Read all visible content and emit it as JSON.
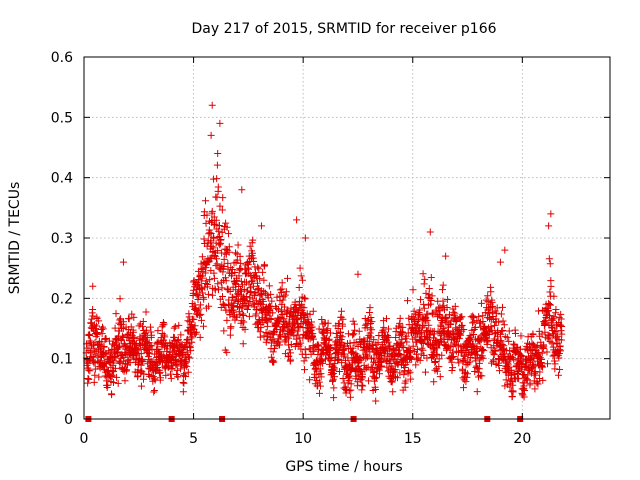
{
  "chart_data": {
    "type": "scatter",
    "title": "Day 217 of 2015, SRMTID for receiver p166",
    "xlabel": "GPS time / hours",
    "ylabel": "SRMTID / TECUs",
    "xlim": [
      0,
      24
    ],
    "ylim": [
      0,
      0.6
    ],
    "xticks": [
      0,
      5,
      10,
      15,
      20
    ],
    "xtick_labels": [
      "0",
      "5",
      "10",
      "15",
      "20"
    ],
    "yticks": [
      0,
      0.1,
      0.2,
      0.3,
      0.4,
      0.5,
      0.6
    ],
    "ytick_labels": [
      "0",
      "0.1",
      "0.2",
      "0.3",
      "0.4",
      "0.5",
      "0.6"
    ],
    "grid": true,
    "marker": "+",
    "color": "#e00000",
    "data_gap_markers_x": [
      0.2,
      4.0,
      6.3,
      12.3,
      18.4,
      19.9
    ],
    "series": [
      {
        "name": "SRMTID",
        "profile_x": [
          0.1,
          0.3,
          0.5,
          0.8,
          1.2,
          1.6,
          1.8,
          2.2,
          2.6,
          3.0,
          3.4,
          3.8,
          4.2,
          4.6,
          4.9,
          5.1,
          5.3,
          5.5,
          5.7,
          5.9,
          6.1,
          6.3,
          6.5,
          6.8,
          7.2,
          7.6,
          8.0,
          8.4,
          8.8,
          9.2,
          9.6,
          9.9,
          10.2,
          10.6,
          11.0,
          11.4,
          11.8,
          12.2,
          12.6,
          13.0,
          13.4,
          13.8,
          14.2,
          14.6,
          15.0,
          15.4,
          15.8,
          16.2,
          16.6,
          17.0,
          17.4,
          17.8,
          18.2,
          18.6,
          19.0,
          19.4,
          19.8,
          20.2,
          20.6,
          21.0,
          21.3,
          21.6,
          21.8
        ],
        "profile_center": [
          0.07,
          0.12,
          0.15,
          0.1,
          0.09,
          0.12,
          0.13,
          0.11,
          0.12,
          0.1,
          0.09,
          0.11,
          0.1,
          0.11,
          0.14,
          0.2,
          0.22,
          0.24,
          0.26,
          0.3,
          0.32,
          0.26,
          0.24,
          0.2,
          0.22,
          0.23,
          0.2,
          0.16,
          0.15,
          0.17,
          0.14,
          0.2,
          0.13,
          0.1,
          0.12,
          0.1,
          0.12,
          0.09,
          0.11,
          0.12,
          0.1,
          0.11,
          0.09,
          0.12,
          0.12,
          0.16,
          0.15,
          0.14,
          0.15,
          0.13,
          0.12,
          0.11,
          0.14,
          0.16,
          0.12,
          0.1,
          0.08,
          0.09,
          0.1,
          0.13,
          0.18,
          0.13,
          0.12
        ],
        "profile_spread": [
          0.03,
          0.05,
          0.06,
          0.04,
          0.04,
          0.05,
          0.06,
          0.04,
          0.05,
          0.04,
          0.04,
          0.04,
          0.04,
          0.04,
          0.05,
          0.06,
          0.07,
          0.08,
          0.09,
          0.11,
          0.12,
          0.1,
          0.09,
          0.07,
          0.07,
          0.07,
          0.07,
          0.06,
          0.05,
          0.06,
          0.05,
          0.08,
          0.05,
          0.04,
          0.05,
          0.04,
          0.05,
          0.04,
          0.05,
          0.06,
          0.04,
          0.05,
          0.04,
          0.05,
          0.06,
          0.07,
          0.07,
          0.06,
          0.06,
          0.05,
          0.05,
          0.05,
          0.06,
          0.07,
          0.05,
          0.05,
          0.04,
          0.04,
          0.05,
          0.06,
          0.09,
          0.05,
          0.04
        ],
        "sample_count": 2600,
        "peaks": [
          [
            5.85,
            0.52
          ],
          [
            5.8,
            0.47
          ],
          [
            6.2,
            0.49
          ],
          [
            6.1,
            0.44
          ],
          [
            7.2,
            0.38
          ],
          [
            9.7,
            0.33
          ],
          [
            21.3,
            0.34
          ],
          [
            21.2,
            0.32
          ],
          [
            15.8,
            0.31
          ],
          [
            1.8,
            0.26
          ],
          [
            0.4,
            0.22
          ],
          [
            12.5,
            0.24
          ],
          [
            16.5,
            0.27
          ],
          [
            19.2,
            0.28
          ],
          [
            19.0,
            0.26
          ],
          [
            10.1,
            0.3
          ],
          [
            8.1,
            0.32
          ]
        ]
      }
    ]
  }
}
